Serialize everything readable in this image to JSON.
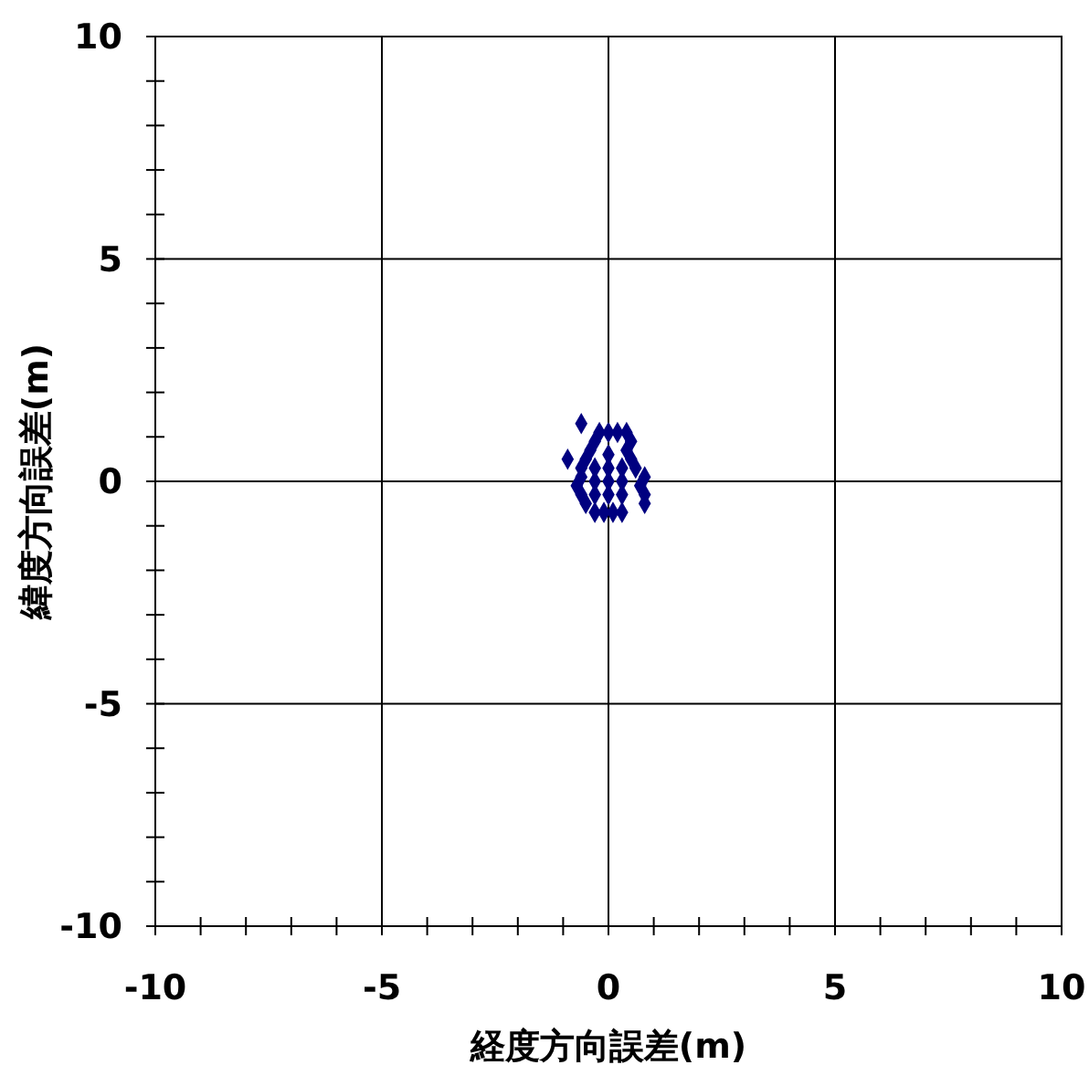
{
  "chart_data": {
    "type": "scatter",
    "xlabel": "経度方向誤差(m)",
    "ylabel": "緯度方向誤差(m)",
    "xlim": [
      -10,
      10
    ],
    "ylim": [
      -10,
      10
    ],
    "xticks": [
      -10,
      {
        "value": -9,
        "label": null
      },
      {
        "value": -8,
        "label": null
      },
      {
        "value": -7,
        "label": null
      },
      {
        "value": -6,
        "label": null
      },
      -5,
      {
        "value": -4,
        "label": null
      },
      {
        "value": -3,
        "label": null
      },
      {
        "value": -2,
        "label": null
      },
      {
        "value": -1,
        "label": null
      },
      0,
      {
        "value": 1,
        "label": null
      },
      {
        "value": 2,
        "label": null
      },
      {
        "value": 3,
        "label": null
      },
      {
        "value": 4,
        "label": null
      },
      5,
      {
        "value": 6,
        "label": null
      },
      {
        "value": 7,
        "label": null
      },
      {
        "value": 8,
        "label": null
      },
      {
        "value": 9,
        "label": null
      },
      10
    ],
    "yticks": [
      -10,
      {
        "value": -9,
        "label": null
      },
      {
        "value": -8,
        "label": null
      },
      {
        "value": -7,
        "label": null
      },
      {
        "value": -6,
        "label": null
      },
      -5,
      {
        "value": -4,
        "label": null
      },
      {
        "value": -3,
        "label": null
      },
      {
        "value": -2,
        "label": null
      },
      {
        "value": -1,
        "label": null
      },
      0,
      {
        "value": 1,
        "label": null
      },
      {
        "value": 2,
        "label": null
      },
      {
        "value": 3,
        "label": null
      },
      {
        "value": 4,
        "label": null
      },
      5,
      {
        "value": 6,
        "label": null
      },
      {
        "value": 7,
        "label": null
      },
      {
        "value": 8,
        "label": null
      },
      {
        "value": 9,
        "label": null
      },
      10
    ],
    "grid": true,
    "marker": "diamond",
    "series": [
      {
        "color": "#000080",
        "x": [
          0.0,
          -0.3,
          0.0,
          0.3,
          -0.3,
          0.0,
          0.3,
          -0.3,
          0.0,
          0.3,
          -0.2,
          0.0,
          0.2,
          0.4,
          -0.3,
          0.5,
          -0.4,
          0.4,
          -0.5,
          0.5,
          -0.6,
          0.6,
          -0.6,
          0.8,
          -0.7,
          0.7,
          -0.6,
          0.8,
          -0.5,
          0.8,
          -0.3,
          -0.1,
          0.1,
          0.3,
          -0.6,
          -0.9
        ],
        "values": [
          0.6,
          0.3,
          0.3,
          0.3,
          0.0,
          0.0,
          0.0,
          -0.3,
          -0.3,
          -0.3,
          1.1,
          1.1,
          1.1,
          1.1,
          0.9,
          0.9,
          0.7,
          0.7,
          0.5,
          0.5,
          0.3,
          0.3,
          0.1,
          0.1,
          -0.1,
          -0.1,
          -0.3,
          -0.3,
          -0.5,
          -0.5,
          -0.7,
          -0.7,
          -0.7,
          -0.7,
          1.3,
          0.5
        ]
      }
    ]
  }
}
